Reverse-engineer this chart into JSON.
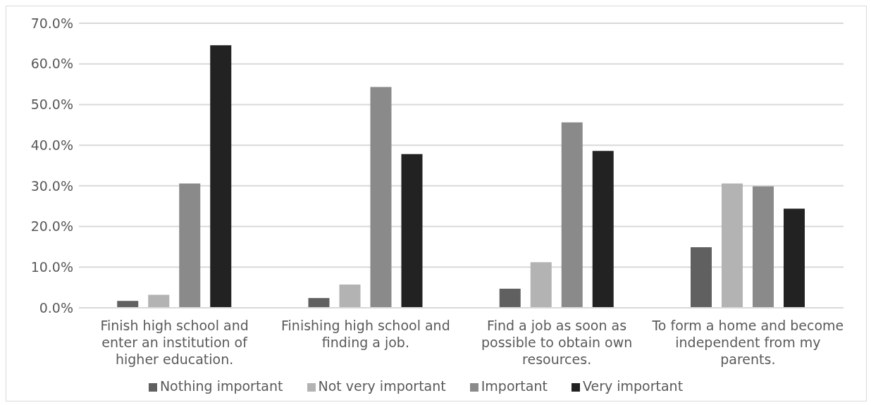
{
  "chart_data": {
    "type": "bar",
    "categories": [
      "Finish high school and enter an institution of higher education.",
      "Finishing high school and finding a job.",
      "Find a job as soon as possible to obtain own resources.",
      "To form a home and become independent from my parents."
    ],
    "series": [
      {
        "name": "Nothing important",
        "color": "#606060",
        "values": [
          1.7,
          2.4,
          4.7,
          14.9
        ]
      },
      {
        "name": "Not very important",
        "color": "#b3b3b3",
        "values": [
          3.2,
          5.7,
          11.2,
          30.6
        ]
      },
      {
        "name": "Important",
        "color": "#8a8a8a",
        "values": [
          30.6,
          54.3,
          45.6,
          29.9
        ]
      },
      {
        "name": "Very important",
        "color": "#222222",
        "values": [
          64.6,
          37.8,
          38.6,
          24.4
        ]
      }
    ],
    "ylim": [
      0,
      70
    ],
    "yticks": [
      {
        "value": 0,
        "label": "0.0%"
      },
      {
        "value": 10,
        "label": "10.0%"
      },
      {
        "value": 20,
        "label": "20.0%"
      },
      {
        "value": 30,
        "label": "30.0%"
      },
      {
        "value": 40,
        "label": "40.0%"
      },
      {
        "value": 50,
        "label": "50.0%"
      },
      {
        "value": 60,
        "label": "60.0%"
      },
      {
        "value": 70,
        "label": "70.0%"
      }
    ],
    "grid": "y",
    "legend": "bottom"
  }
}
